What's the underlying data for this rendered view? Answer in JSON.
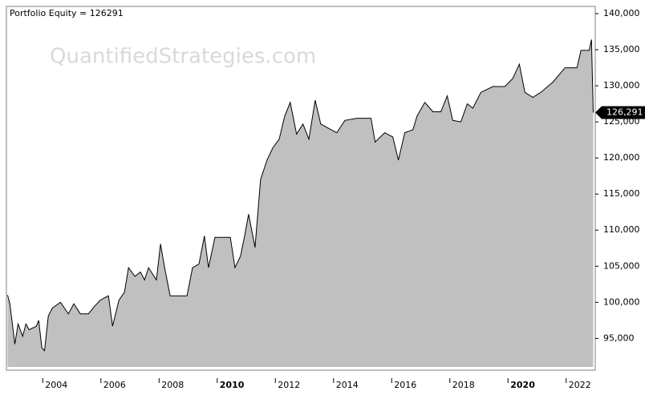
{
  "chart_data": {
    "type": "area",
    "title": "Portfolio Equity = 126291",
    "watermark": "QuantifiedStrategies.com",
    "series": [
      {
        "name": "Portfolio Equity",
        "color": "#000000",
        "fill": "#c0c0c0",
        "x": [
          2002.79,
          2002.87,
          2003.04,
          2003.15,
          2003.31,
          2003.42,
          2003.53,
          2003.78,
          2003.86,
          2003.97,
          2004.06,
          2004.19,
          2004.33,
          2004.61,
          2004.88,
          2005.07,
          2005.29,
          2005.57,
          2005.79,
          2005.98,
          2006.26,
          2006.4,
          2006.62,
          2006.81,
          2006.95,
          2007.17,
          2007.36,
          2007.5,
          2007.64,
          2007.91,
          2008.05,
          2008.19,
          2008.38,
          2008.6,
          2008.96,
          2009.15,
          2009.37,
          2009.56,
          2009.7,
          2009.92,
          2010.25,
          2010.45,
          2010.61,
          2010.8,
          2010.94,
          2011.08,
          2011.3,
          2011.49,
          2011.71,
          2011.91,
          2012.13,
          2012.32,
          2012.51,
          2012.73,
          2012.95,
          2013.15,
          2013.37,
          2013.56,
          2013.83,
          2014.11,
          2014.39,
          2014.8,
          2015.29,
          2015.43,
          2015.76,
          2016.04,
          2016.23,
          2016.45,
          2016.73,
          2016.87,
          2017.14,
          2017.42,
          2017.69,
          2017.91,
          2018.1,
          2018.38,
          2018.6,
          2018.79,
          2019.07,
          2019.48,
          2019.89,
          2020.16,
          2020.39,
          2020.58,
          2020.85,
          2021.13,
          2021.54,
          2021.96,
          2022.37,
          2022.51,
          2022.79,
          2022.87,
          2022.93
        ],
        "values": [
          101000,
          99800,
          94200,
          97000,
          95300,
          97000,
          96200,
          96700,
          97500,
          93700,
          93300,
          98100,
          99200,
          100000,
          98400,
          99800,
          98400,
          98400,
          99500,
          100300,
          100900,
          96700,
          100300,
          101400,
          104800,
          103600,
          104200,
          103100,
          104800,
          103100,
          108100,
          104800,
          100900,
          100900,
          100900,
          104800,
          105300,
          109200,
          104800,
          109000,
          109000,
          109000,
          104800,
          106400,
          109200,
          112200,
          107600,
          117000,
          119700,
          121400,
          122600,
          125800,
          127700,
          123300,
          124700,
          122600,
          128000,
          124700,
          124100,
          123500,
          125200,
          125500,
          125500,
          122200,
          123500,
          122900,
          119700,
          123500,
          123900,
          125800,
          127700,
          126400,
          126400,
          128600,
          125200,
          125000,
          127500,
          126900,
          129100,
          129900,
          129900,
          131000,
          133000,
          129100,
          128400,
          129100,
          130500,
          132500,
          132500,
          134900,
          134900,
          136400,
          126291
        ]
      }
    ],
    "current_label": "126,291",
    "xlim": [
      2002.75,
      2023.0
    ],
    "xticks": [
      2004,
      2006,
      2008,
      2010,
      2012,
      2014,
      2016,
      2018,
      2020,
      2022
    ],
    "ylim": [
      90600,
      141000
    ],
    "yticks": [
      {
        "value": 95000,
        "label": "95,000"
      },
      {
        "value": 100000,
        "label": "100,000"
      },
      {
        "value": 105000,
        "label": "105,000"
      },
      {
        "value": 110000,
        "label": "110,000"
      },
      {
        "value": 115000,
        "label": "115,000"
      },
      {
        "value": 120000,
        "label": "120,000"
      },
      {
        "value": 125000,
        "label": "125,000"
      },
      {
        "value": 130000,
        "label": "130,000"
      },
      {
        "value": 135000,
        "label": "135,000"
      },
      {
        "value": 140000,
        "label": "140,000"
      }
    ]
  }
}
